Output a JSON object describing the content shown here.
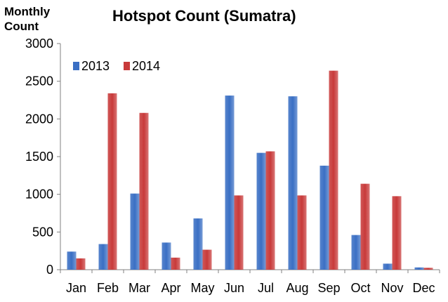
{
  "chart_data": {
    "type": "bar",
    "title": "Hotspot Count (Sumatra)",
    "ylabel": "Monthly\nCount",
    "xlabel": "",
    "categories": [
      "Jan",
      "Feb",
      "Mar",
      "Apr",
      "May",
      "Jun",
      "Jul",
      "Aug",
      "Sep",
      "Oct",
      "Nov",
      "Dec"
    ],
    "series": [
      {
        "name": "2013",
        "color": "#3a6fc4",
        "values": [
          240,
          340,
          1010,
          360,
          680,
          2310,
          1550,
          2300,
          1380,
          460,
          80,
          30
        ]
      },
      {
        "name": "2014",
        "color": "#c83a3a",
        "values": [
          150,
          2340,
          2080,
          160,
          265,
          985,
          1570,
          985,
          2640,
          1140,
          975,
          25
        ]
      }
    ],
    "ylim": [
      0,
      3000
    ],
    "yticks": [
      0,
      500,
      1000,
      1500,
      2000,
      2500,
      3000
    ],
    "grid": false,
    "legend_position": "top-left"
  }
}
